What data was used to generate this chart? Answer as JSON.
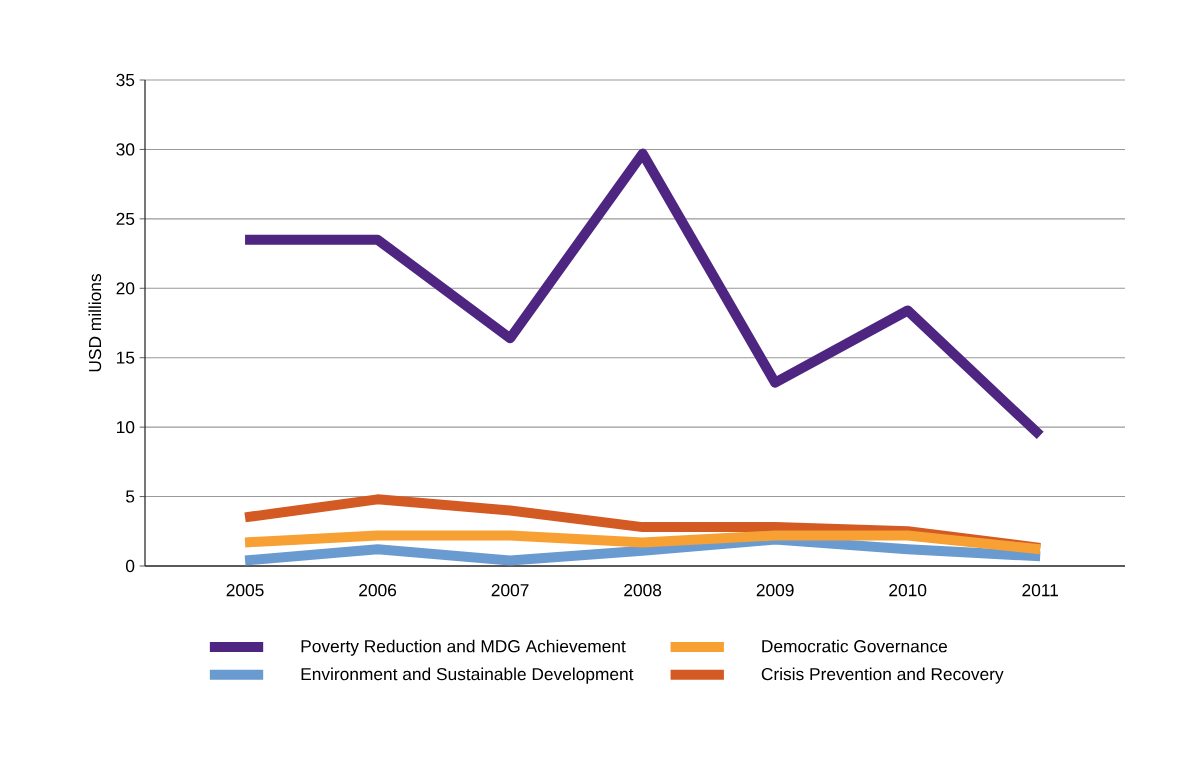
{
  "chart_data": {
    "type": "line",
    "ylabel": "USD millions",
    "categories": [
      "2005",
      "2006",
      "2007",
      "2008",
      "2009",
      "2010",
      "2011"
    ],
    "ylim": [
      0,
      35
    ],
    "yticks": [
      0,
      5,
      10,
      15,
      20,
      25,
      30,
      35
    ],
    "grid": "y",
    "legend": "bottom",
    "series": [
      {
        "name": "Poverty Reduction and MDG Achievement",
        "color": "#4e2682",
        "values": [
          23.5,
          23.5,
          16.4,
          29.7,
          13.2,
          18.4,
          9.4
        ]
      },
      {
        "name": "Democratic Governance",
        "color": "#f7a033",
        "values": [
          1.7,
          2.2,
          2.2,
          1.7,
          2.2,
          2.2,
          1.2
        ]
      },
      {
        "name": "Environment and Sustainable Development",
        "color": "#6a9bd0",
        "values": [
          0.4,
          1.2,
          0.4,
          1.1,
          1.9,
          1.2,
          0.7
        ]
      },
      {
        "name": "Crisis Prevention and Recovery",
        "color": "#d35a23",
        "values": [
          3.5,
          4.8,
          4.0,
          2.8,
          2.8,
          2.5,
          1.3
        ]
      }
    ]
  }
}
